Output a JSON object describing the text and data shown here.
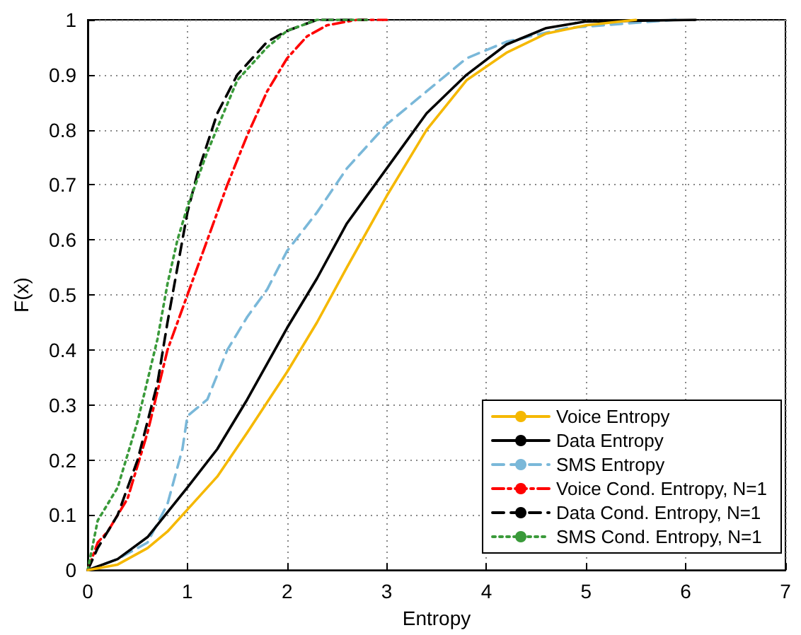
{
  "chart_data": {
    "type": "line",
    "xlabel": "Entropy",
    "ylabel": "F(x)",
    "xlim": [
      0,
      7
    ],
    "xticks": [
      0,
      1,
      2,
      3,
      4,
      5,
      6,
      7
    ],
    "ylim": [
      0,
      1
    ],
    "yticks": [
      0,
      0.1,
      0.2,
      0.3,
      0.4,
      0.5,
      0.6,
      0.7,
      0.8,
      0.9,
      1
    ],
    "grid": true,
    "legend": "bottom right",
    "marker": "none",
    "series": [
      {
        "name": "Voice Entropy",
        "color": "#f5b800",
        "line_style": "solid",
        "x": [
          0,
          0.3,
          0.6,
          0.8,
          1,
          1.3,
          1.6,
          2,
          2.3,
          2.6,
          3,
          3.4,
          3.8,
          4.2,
          4.6,
          5,
          5.5
        ],
        "values": [
          0,
          0.01,
          0.04,
          0.07,
          0.11,
          0.17,
          0.25,
          0.36,
          0.45,
          0.55,
          0.68,
          0.8,
          0.89,
          0.94,
          0.975,
          0.99,
          1
        ]
      },
      {
        "name": "Data Entropy",
        "color": "#000000",
        "line_style": "solid",
        "x": [
          0,
          0.3,
          0.6,
          1,
          1.3,
          1.6,
          2,
          2.3,
          2.6,
          3,
          3.4,
          3.8,
          4.2,
          4.6,
          5,
          6.1
        ],
        "values": [
          0,
          0.02,
          0.06,
          0.15,
          0.22,
          0.31,
          0.44,
          0.53,
          0.63,
          0.73,
          0.83,
          0.9,
          0.955,
          0.985,
          0.997,
          1
        ]
      },
      {
        "name": "SMS Entropy",
        "color": "#7ab8d9",
        "line_style": "dashed",
        "x": [
          0,
          0.3,
          0.6,
          0.8,
          0.95,
          1,
          1.2,
          1.4,
          1.6,
          1.8,
          2,
          2.3,
          2.6,
          3,
          3.4,
          3.8,
          4.2,
          4.8,
          5.9
        ],
        "values": [
          0,
          0.02,
          0.05,
          0.12,
          0.22,
          0.28,
          0.31,
          0.4,
          0.46,
          0.51,
          0.58,
          0.65,
          0.73,
          0.81,
          0.87,
          0.93,
          0.96,
          0.985,
          1
        ]
      },
      {
        "name": "Voice Cond. Entropy, N=1",
        "color": "#ff0000",
        "line_style": "dashdot",
        "x": [
          0,
          0.1,
          0.2,
          0.4,
          0.6,
          0.8,
          1,
          1.2,
          1.4,
          1.6,
          1.8,
          2,
          2.2,
          2.4,
          2.7,
          3
        ],
        "values": [
          0,
          0.05,
          0.07,
          0.13,
          0.25,
          0.4,
          0.5,
          0.6,
          0.7,
          0.79,
          0.87,
          0.93,
          0.97,
          0.99,
          1,
          1
        ]
      },
      {
        "name": "Data Cond. Entropy, N=1",
        "color": "#000000",
        "line_style": "dashed",
        "x": [
          0,
          0.1,
          0.3,
          0.5,
          0.7,
          0.8,
          0.9,
          1,
          1.1,
          1.3,
          1.5,
          1.8,
          2,
          2.3,
          2.8
        ],
        "values": [
          0,
          0.04,
          0.1,
          0.2,
          0.34,
          0.45,
          0.55,
          0.65,
          0.72,
          0.83,
          0.9,
          0.96,
          0.98,
          1,
          1
        ]
      },
      {
        "name": "SMS Cond. Entropy, N=1",
        "color": "#3a9a3a",
        "line_style": "dotted",
        "x": [
          0,
          0.1,
          0.3,
          0.5,
          0.7,
          0.8,
          0.9,
          1,
          1.2,
          1.5,
          1.8,
          2,
          2.3,
          2.8
        ],
        "values": [
          0,
          0.09,
          0.15,
          0.27,
          0.42,
          0.52,
          0.6,
          0.66,
          0.76,
          0.89,
          0.95,
          0.98,
          1,
          1
        ]
      }
    ]
  }
}
